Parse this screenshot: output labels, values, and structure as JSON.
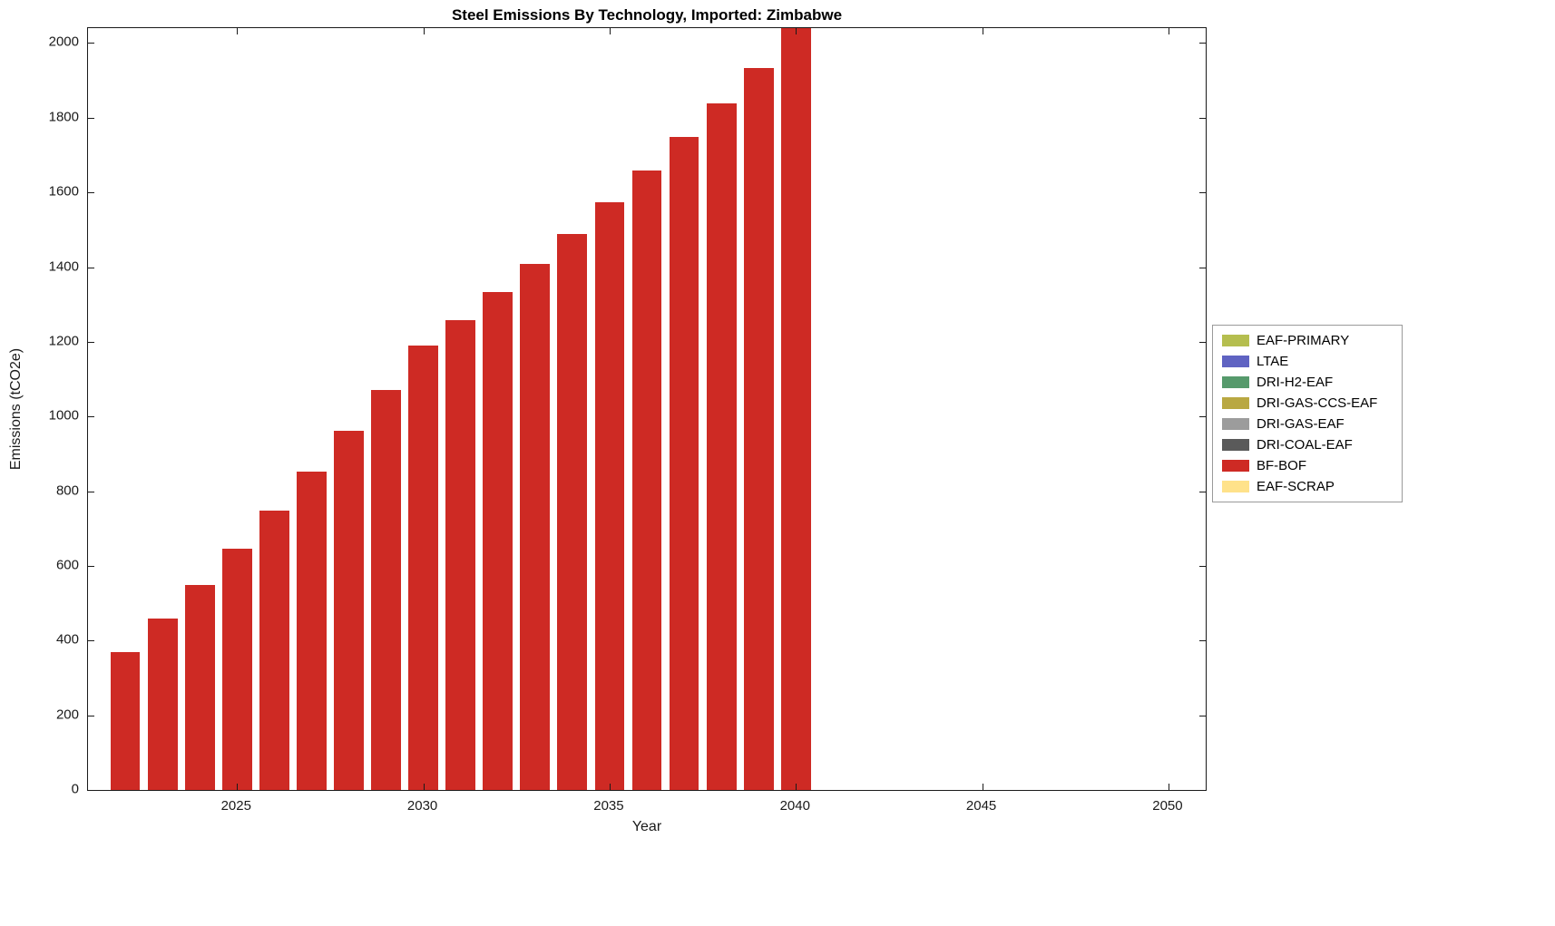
{
  "chart_data": {
    "type": "bar",
    "title": "Steel Emissions By Technology, Imported: Zimbabwe",
    "xlabel": "Year",
    "ylabel": "Emissions (tCO2e)",
    "xlim": [
      2021,
      2051
    ],
    "ylim": [
      0,
      2040
    ],
    "x_ticks": [
      2025,
      2030,
      2035,
      2040,
      2045,
      2050
    ],
    "y_ticks": [
      0,
      200,
      400,
      600,
      800,
      1000,
      1200,
      1400,
      1600,
      1800,
      2000
    ],
    "grid": false,
    "legend_position": "right-outside",
    "series_name": "BF-BOF",
    "bar_color": "#CE2A24",
    "bar_width_years": 0.8,
    "years": [
      2022,
      2023,
      2024,
      2025,
      2026,
      2027,
      2028,
      2029,
      2030,
      2031,
      2032,
      2033,
      2034,
      2035,
      2036,
      2037,
      2038,
      2039,
      2040
    ],
    "values": [
      370,
      458,
      549,
      646,
      748,
      852,
      961,
      1070,
      1189,
      1259,
      1334,
      1409,
      1489,
      1574,
      1659,
      1748,
      1838,
      1934,
      2050
    ],
    "legend": [
      {
        "label": "EAF-PRIMARY",
        "color": "#B5BE4F"
      },
      {
        "label": "LTAE",
        "color": "#5F63C2"
      },
      {
        "label": "DRI-H2-EAF",
        "color": "#569A6C"
      },
      {
        "label": "DRI-GAS-CCS-EAF",
        "color": "#B9A842"
      },
      {
        "label": "DRI-GAS-EAF",
        "color": "#9C9C9C"
      },
      {
        "label": "DRI-COAL-EAF",
        "color": "#5A5A5A"
      },
      {
        "label": "BF-BOF",
        "color": "#CE2A24"
      },
      {
        "label": "EAF-SCRAP",
        "color": "#FFE28A"
      }
    ]
  }
}
